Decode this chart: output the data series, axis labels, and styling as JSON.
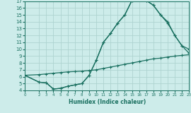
{
  "bg_color": "#cdecea",
  "grid_color": "#aed4d0",
  "line_color": "#1a7060",
  "line_width": 0.9,
  "marker": "+",
  "marker_size": 3.5,
  "marker_edge_width": 0.8,
  "xlabel": "Humidex (Indice chaleur)",
  "xlim": [
    0,
    23
  ],
  "ylim": [
    4,
    17
  ],
  "xticks": [
    0,
    2,
    3,
    4,
    5,
    6,
    7,
    8,
    9,
    10,
    11,
    12,
    13,
    14,
    15,
    16,
    17,
    18,
    19,
    20,
    21,
    22,
    23
  ],
  "yticks": [
    4,
    5,
    6,
    7,
    8,
    9,
    10,
    11,
    12,
    13,
    14,
    15,
    16,
    17
  ],
  "line1_x": [
    0,
    2,
    3,
    4,
    5,
    6,
    7,
    8,
    9,
    10,
    11,
    12,
    13,
    14,
    15,
    16,
    17,
    18,
    19,
    20,
    21,
    22,
    23
  ],
  "line1_y": [
    6.2,
    6.3,
    6.4,
    6.5,
    6.6,
    6.7,
    6.75,
    6.8,
    6.9,
    7.0,
    7.2,
    7.4,
    7.6,
    7.8,
    8.0,
    8.2,
    8.4,
    8.6,
    8.7,
    8.85,
    9.0,
    9.1,
    9.2
  ],
  "line2_x": [
    0,
    2,
    3,
    4,
    5,
    6,
    7,
    8,
    9,
    10,
    11,
    12,
    13,
    14,
    15,
    16,
    17,
    18,
    19,
    20,
    21,
    22,
    23
  ],
  "line2_y": [
    6.2,
    5.2,
    5.1,
    4.2,
    4.3,
    4.6,
    4.8,
    5.0,
    6.2,
    8.4,
    11.0,
    12.3,
    13.8,
    15.0,
    17.1,
    17.2,
    17.1,
    16.4,
    15.0,
    14.0,
    12.0,
    10.5,
    10.0
  ],
  "line3_x": [
    0,
    2,
    3,
    4,
    5,
    6,
    7,
    8,
    9,
    10,
    11,
    12,
    13,
    14,
    15,
    16,
    17,
    18,
    19,
    20,
    21,
    22,
    23
  ],
  "line3_y": [
    6.2,
    5.2,
    5.1,
    4.2,
    4.3,
    4.6,
    4.8,
    5.0,
    6.2,
    8.4,
    11.0,
    12.3,
    13.8,
    15.0,
    17.1,
    17.2,
    17.1,
    16.4,
    15.0,
    13.8,
    12.0,
    10.5,
    9.4
  ]
}
